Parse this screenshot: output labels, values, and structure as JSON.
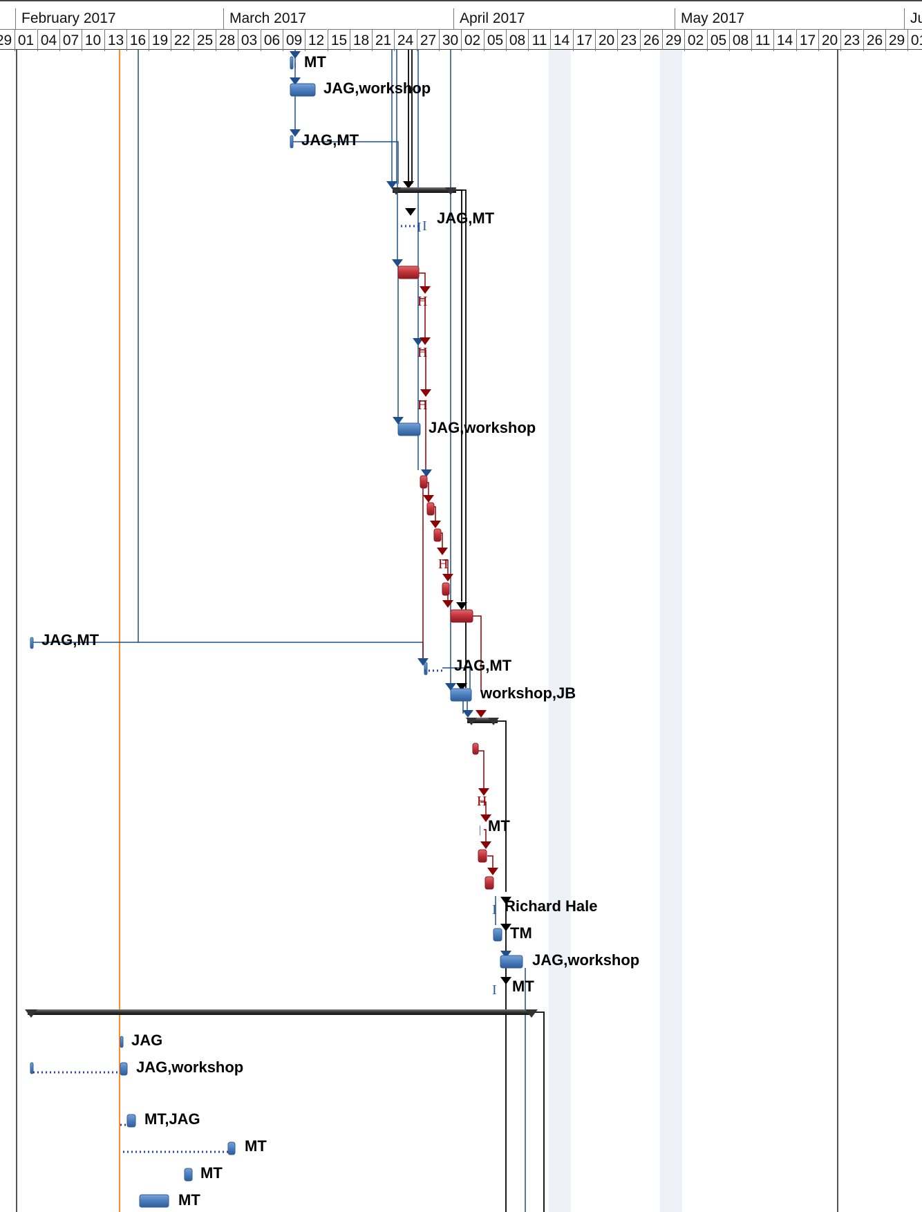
{
  "timescale": {
    "months": [
      "February 2017",
      "March 2017",
      "April 2017",
      "May 2017",
      "Ju"
    ],
    "days": [
      "29",
      "01",
      "04",
      "07",
      "10",
      "13",
      "16",
      "19",
      "22",
      "25",
      "28",
      "03",
      "06",
      "09",
      "12",
      "15",
      "18",
      "21",
      "24",
      "27",
      "30",
      "02",
      "05",
      "08",
      "11",
      "14",
      "17",
      "20",
      "23",
      "26",
      "29",
      "02",
      "05",
      "08",
      "11",
      "14",
      "17",
      "20",
      "23",
      "26",
      "29",
      "01"
    ]
  },
  "colors": {
    "task_blue": "#4a7ebb",
    "critical_red": "#c0303a",
    "summary": "#3a3a3a",
    "link_blue": "#1f4e8c",
    "link_red": "#8b0000",
    "today_line": "#ff8c2a",
    "nonworking_shade": "#eef1f7"
  },
  "tasks": [
    {
      "resources": "MT"
    },
    {
      "resources": "JAG,workshop"
    },
    {
      "resources": "JAG,MT"
    },
    {
      "resources": "JAG,MT"
    },
    {
      "resources": "JAG,workshop"
    },
    {
      "resources": "JAG,MT"
    },
    {
      "resources": "JAG,MT"
    },
    {
      "resources": "workshop,JB"
    },
    {
      "resources": "MT"
    },
    {
      "resources": "Richard Hale"
    },
    {
      "resources": "TM"
    },
    {
      "resources": "JAG,workshop"
    },
    {
      "resources": "MT"
    },
    {
      "resources": "JAG"
    },
    {
      "resources": "JAG,workshop"
    },
    {
      "resources": "MT,JAG"
    },
    {
      "resources": "MT"
    },
    {
      "resources": "MT"
    },
    {
      "resources": "MT"
    }
  ]
}
